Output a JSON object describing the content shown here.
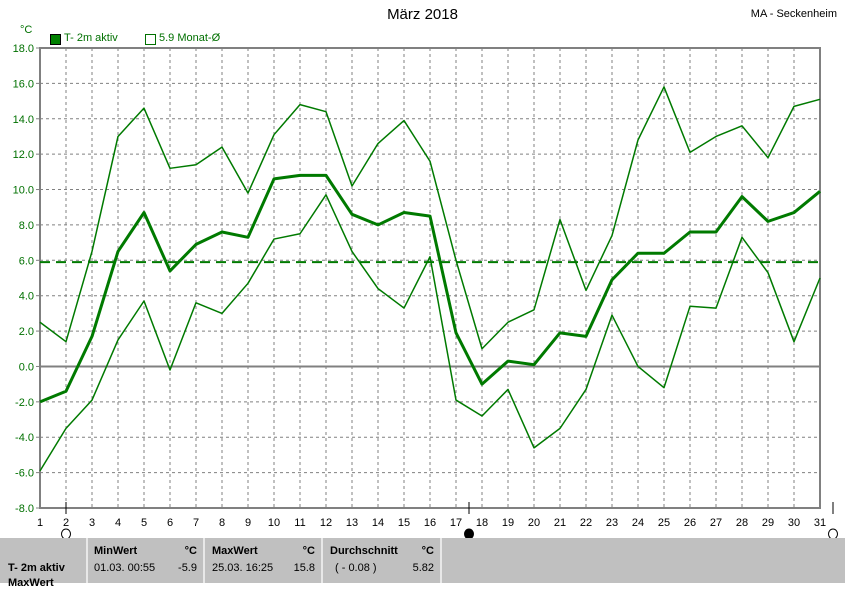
{
  "header": {
    "title": "März 2018",
    "station": "MA - Seckenheim",
    "unit": "°C"
  },
  "legend": [
    {
      "label": "T- 2m aktiv",
      "style": "filled-square"
    },
    {
      "label": "5.9 Monat-Ø",
      "style": "open-square"
    }
  ],
  "colors": {
    "series": "#007a00",
    "grid": "#808080",
    "axis_labels": "#007000",
    "panel": "#c0c0c0"
  },
  "chart_data": {
    "type": "line",
    "title": "März 2018",
    "ylabel": "°C",
    "ylim": [
      -8,
      18
    ],
    "yticks": [
      "18.0",
      "16.0",
      "14.0",
      "12.0",
      "10.0",
      "8.0",
      "6.0",
      "4.0",
      "2.0",
      "0.0",
      "-2.0",
      "-4.0",
      "-6.0",
      "-8.0"
    ],
    "x": [
      1,
      2,
      3,
      4,
      5,
      6,
      7,
      8,
      9,
      10,
      11,
      12,
      13,
      14,
      15,
      16,
      17,
      18,
      19,
      20,
      21,
      22,
      23,
      24,
      25,
      26,
      27,
      28,
      29,
      30,
      31
    ],
    "grid": true,
    "legend_position": "top-left",
    "series": [
      {
        "role": "max",
        "values": [
          2.5,
          1.4,
          6.5,
          13.0,
          14.6,
          11.2,
          11.4,
          12.4,
          9.8,
          13.1,
          14.8,
          14.4,
          10.2,
          12.6,
          13.9,
          11.6,
          6.0,
          1.0,
          2.5,
          3.2,
          8.3,
          4.3,
          7.4,
          12.8,
          15.8,
          12.1,
          13.0,
          13.6,
          11.8,
          14.7,
          15.1
        ]
      },
      {
        "role": "mean",
        "name": "T- 2m aktiv",
        "values": [
          -2.0,
          -1.4,
          1.7,
          6.5,
          8.7,
          5.4,
          6.9,
          7.6,
          7.3,
          10.6,
          10.8,
          10.8,
          8.6,
          8.0,
          8.7,
          8.5,
          1.9,
          -1.0,
          0.3,
          0.1,
          1.9,
          1.7,
          4.9,
          6.4,
          6.4,
          7.6,
          7.6,
          9.6,
          8.2,
          8.7,
          9.9
        ]
      },
      {
        "role": "min",
        "values": [
          -5.9,
          -3.5,
          -1.9,
          1.5,
          3.7,
          -0.2,
          3.6,
          3.0,
          4.7,
          7.2,
          7.5,
          9.7,
          6.5,
          4.4,
          3.3,
          6.2,
          -1.9,
          -2.8,
          -1.3,
          -4.6,
          -3.5,
          -1.3,
          2.9,
          0.0,
          -1.2,
          3.4,
          3.3,
          7.3,
          5.3,
          1.4,
          5.0
        ]
      }
    ],
    "reference_line": {
      "name": "5.9 Monat-Ø",
      "value": 5.9,
      "style": "dashed"
    },
    "moon_phases": [
      {
        "day": 2,
        "phase": "full"
      },
      {
        "day": 17.5,
        "phase": "new"
      },
      {
        "day": 31.5,
        "phase": "full"
      }
    ]
  },
  "stats": {
    "row_label": "T- 2m aktiv",
    "row_label_2": "MaxWert",
    "min": {
      "header": "MinWert",
      "unit": "°C",
      "date": "01.03.  00:55",
      "value": "-5.9"
    },
    "max": {
      "header": "MaxWert",
      "unit": "°C",
      "date": "25.03.  16:25",
      "value": "15.8"
    },
    "avg": {
      "header": "Durchschnitt",
      "unit": "°C",
      "deviation": "( - 0.08 )",
      "value": "5.82"
    }
  }
}
